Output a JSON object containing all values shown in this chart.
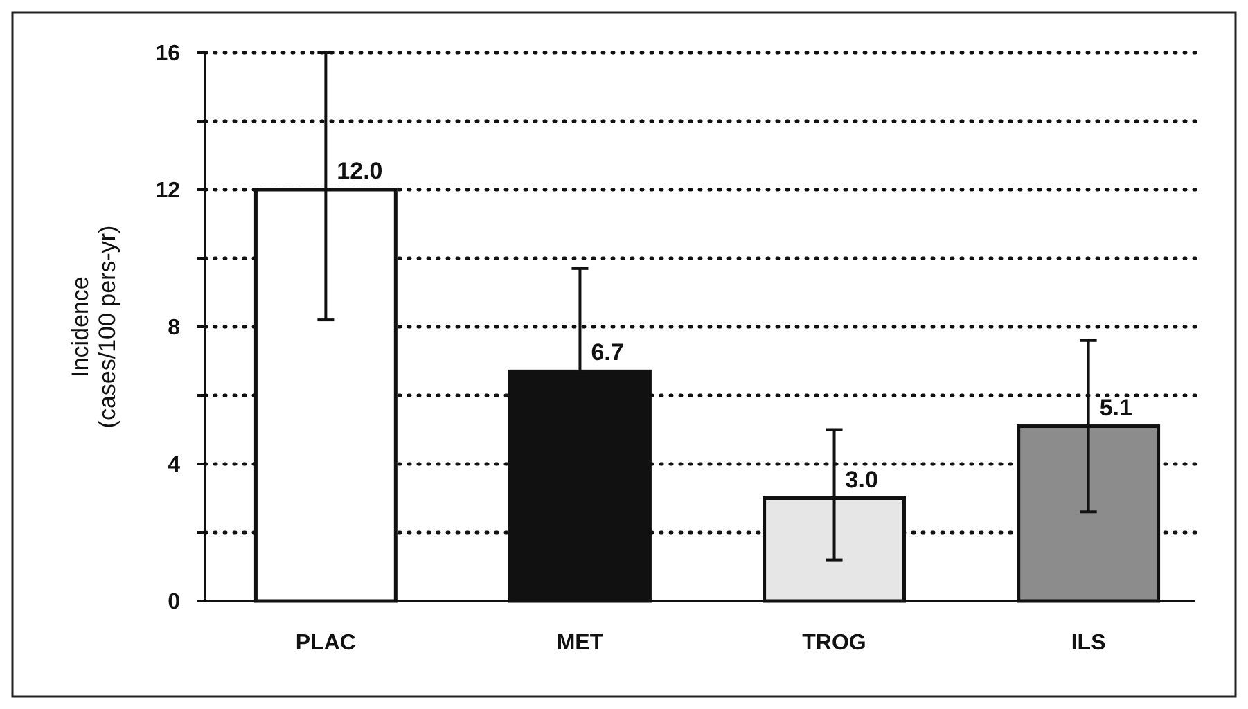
{
  "chart_data": {
    "type": "bar",
    "ylabel": "Incidence\n(cases/100 pers-yr)",
    "categories": [
      "PLAC",
      "MET",
      "TROG",
      "ILS"
    ],
    "values": [
      12.0,
      6.7,
      3.0,
      5.1
    ],
    "colors": [
      "#ffffff",
      "#111111",
      "#e6e6e6",
      "#8c8c8c"
    ],
    "errors": [
      [
        8.2,
        16
      ],
      [
        6.7,
        9.7
      ],
      [
        1.2,
        5.0
      ],
      [
        2.6,
        7.6
      ]
    ],
    "ylim": [
      0,
      16
    ],
    "yticks": [
      0,
      {
        "value": 2,
        "label": null
      },
      4,
      {
        "value": 6,
        "label": null
      },
      8,
      {
        "value": 10,
        "label": null
      },
      12,
      {
        "value": 14,
        "label": null
      },
      16
    ],
    "value_labels": [
      "12.0",
      "6.7",
      "3.0",
      "5.1"
    ],
    "grid": "y"
  }
}
